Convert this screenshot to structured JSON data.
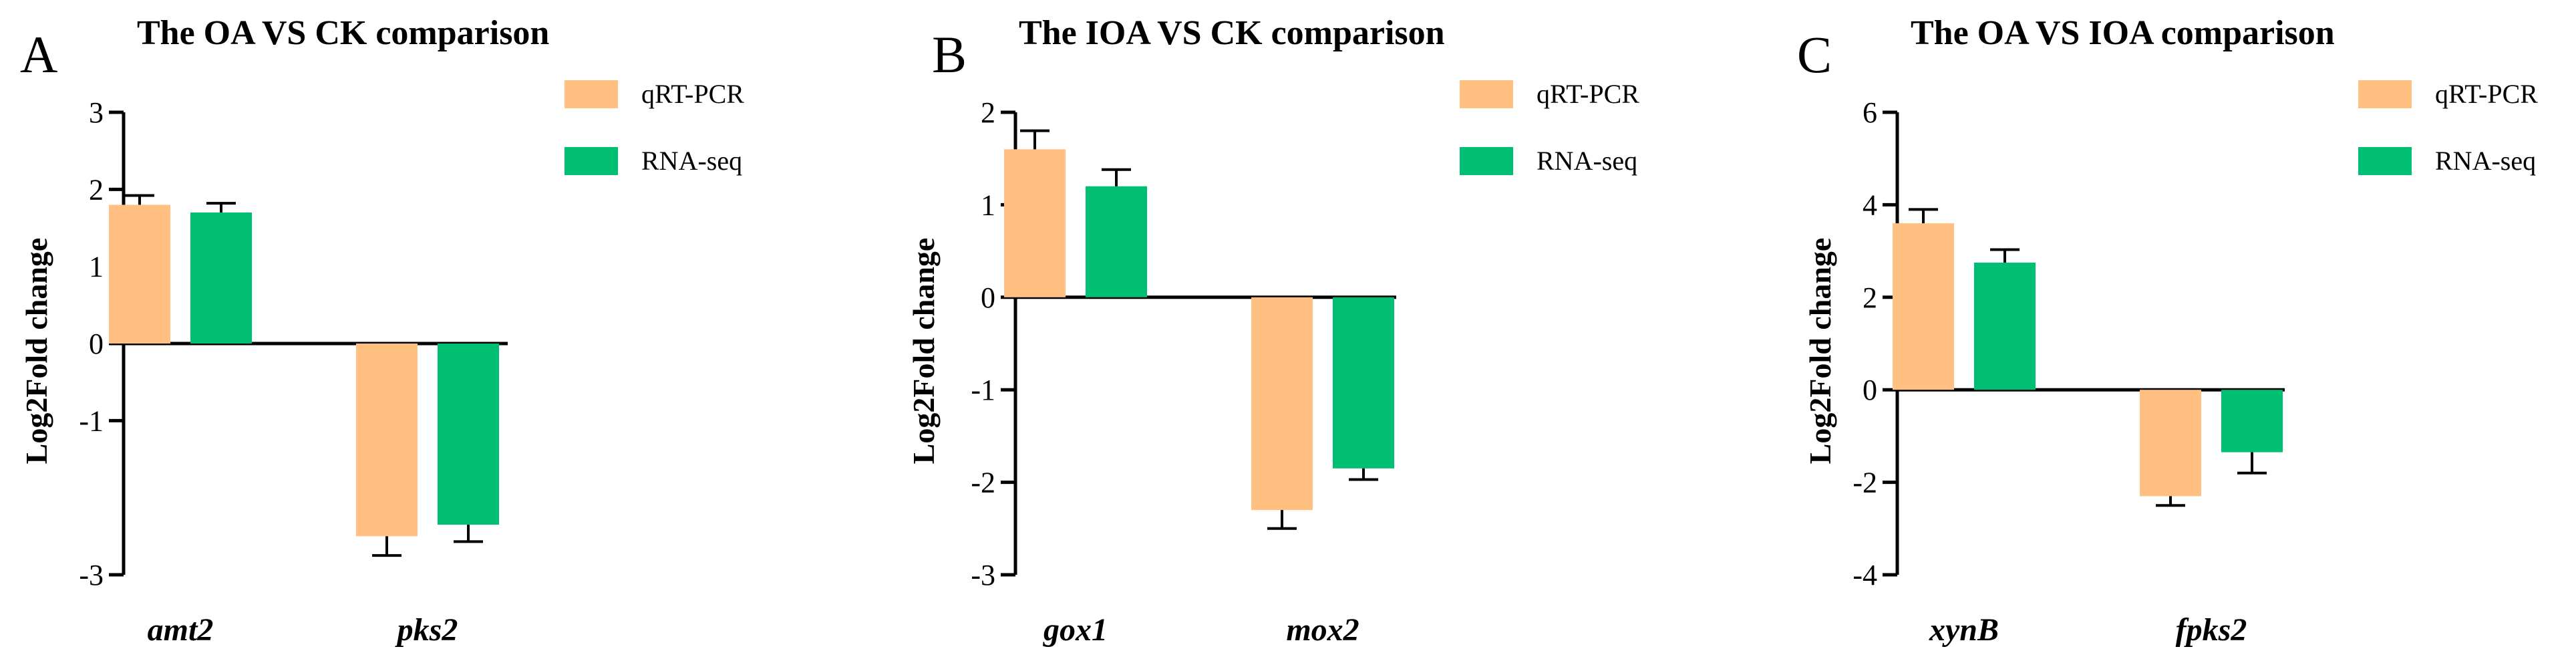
{
  "colors": {
    "qrt": "#FFC081",
    "rna": "#00BE72"
  },
  "chart_data": [
    {
      "type": "bar",
      "panel": "A",
      "title": "The OA VS CK comparison",
      "ylabel": "Log2Fold change",
      "xlabel": "",
      "categories": [
        "amt2",
        "pks2"
      ],
      "ylim": [
        -3,
        3
      ],
      "yticks": [
        3,
        2,
        1,
        0,
        -1,
        -3
      ],
      "series": [
        {
          "name": "qRT-PCR",
          "values": [
            1.8,
            -2.5
          ],
          "errors": [
            0.12,
            0.25
          ]
        },
        {
          "name": "RNA-seq",
          "values": [
            1.7,
            -2.35
          ],
          "errors": [
            0.12,
            0.22
          ]
        }
      ]
    },
    {
      "type": "bar",
      "panel": "B",
      "title": "The IOA VS CK comparison",
      "ylabel": "Log2Fold change",
      "xlabel": "",
      "categories": [
        "gox1",
        "mox2"
      ],
      "ylim": [
        -3,
        2
      ],
      "yticks": [
        2,
        1,
        0,
        -1,
        -2,
        -3
      ],
      "series": [
        {
          "name": "qRT-PCR",
          "values": [
            1.6,
            -2.3
          ],
          "errors": [
            0.2,
            0.2
          ]
        },
        {
          "name": "RNA-seq",
          "values": [
            1.2,
            -1.85
          ],
          "errors": [
            0.18,
            0.12
          ]
        }
      ]
    },
    {
      "type": "bar",
      "panel": "C",
      "title": "The OA VS IOA comparison",
      "ylabel": "Log2Fold change",
      "xlabel": "",
      "categories": [
        "xynB",
        "fpks2"
      ],
      "ylim": [
        -4,
        6
      ],
      "yticks": [
        6,
        4,
        2,
        0,
        -2,
        -4
      ],
      "series": [
        {
          "name": "qRT-PCR",
          "values": [
            3.6,
            -2.3
          ],
          "errors": [
            0.3,
            0.2
          ]
        },
        {
          "name": "RNA-seq",
          "values": [
            2.75,
            -1.35
          ],
          "errors": [
            0.28,
            0.45
          ]
        }
      ]
    }
  ]
}
